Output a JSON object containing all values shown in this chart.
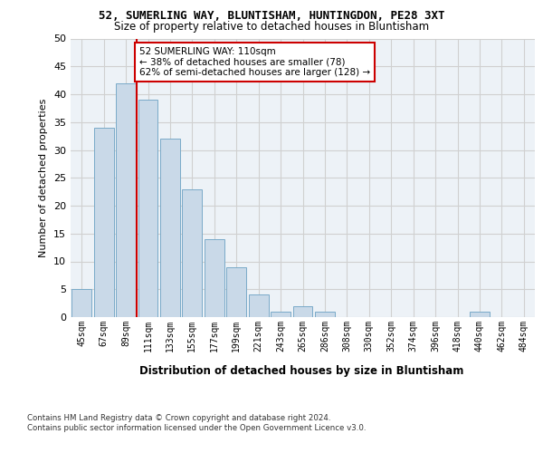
{
  "title_line1": "52, SUMERLING WAY, BLUNTISHAM, HUNTINGDON, PE28 3XT",
  "title_line2": "Size of property relative to detached houses in Bluntisham",
  "xlabel": "Distribution of detached houses by size in Bluntisham",
  "ylabel": "Number of detached properties",
  "bin_labels": [
    "45sqm",
    "67sqm",
    "89sqm",
    "111sqm",
    "133sqm",
    "155sqm",
    "177sqm",
    "199sqm",
    "221sqm",
    "243sqm",
    "265sqm",
    "286sqm",
    "308sqm",
    "330sqm",
    "352sqm",
    "374sqm",
    "396sqm",
    "418sqm",
    "440sqm",
    "462sqm",
    "484sqm"
  ],
  "bar_values": [
    5,
    34,
    42,
    39,
    32,
    23,
    14,
    9,
    4,
    1,
    2,
    1,
    0,
    0,
    0,
    0,
    0,
    0,
    1,
    0,
    0
  ],
  "bar_color": "#c9d9e8",
  "bar_edgecolor": "#7aaac8",
  "vline_color": "#cc0000",
  "annotation_text": "52 SUMERLING WAY: 110sqm\n← 38% of detached houses are smaller (78)\n62% of semi-detached houses are larger (128) →",
  "annotation_box_color": "#ffffff",
  "annotation_box_edgecolor": "#cc0000",
  "ylim": [
    0,
    50
  ],
  "yticks": [
    0,
    5,
    10,
    15,
    20,
    25,
    30,
    35,
    40,
    45,
    50
  ],
  "grid_color": "#d0d0d0",
  "background_color": "#edf2f7",
  "footnote": "Contains HM Land Registry data © Crown copyright and database right 2024.\nContains public sector information licensed under the Open Government Licence v3.0."
}
